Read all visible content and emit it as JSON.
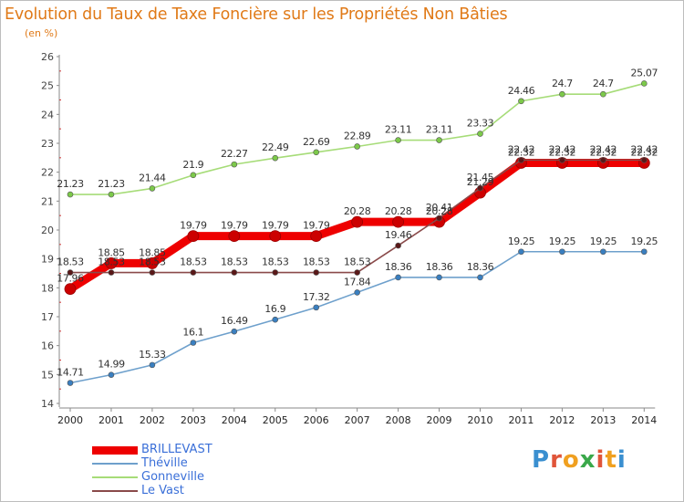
{
  "chart_data": {
    "type": "line",
    "title": "Evolution du Taux de Taxe Foncière sur les Propriétés Non Bâties",
    "ylabel": "(en %)",
    "xlabel": "",
    "ylim": [
      14,
      26
    ],
    "yticks": [
      "14",
      "15",
      "16",
      "17",
      "18",
      "19",
      "20",
      "21",
      "22",
      "23",
      "24",
      "25",
      "26"
    ],
    "categories": [
      "2000",
      "2001",
      "2002",
      "2003",
      "2004",
      "2005",
      "2006",
      "2007",
      "2008",
      "2009",
      "2010",
      "2011",
      "2012",
      "2013",
      "2014"
    ],
    "series": [
      {
        "name": "BRILLEVAST",
        "color": "#ee0000",
        "point_color": "#cc0000",
        "values": [
          17.96,
          18.85,
          18.85,
          19.79,
          19.79,
          19.79,
          19.79,
          20.28,
          20.28,
          20.28,
          21.29,
          22.32,
          22.32,
          22.32,
          22.32
        ],
        "labels": [
          "17.96",
          "18.85",
          "18.85",
          "19.79",
          "19.79",
          "19.79",
          "19.79",
          "20.28",
          "20.28",
          "20.28",
          "21.29",
          "22.32",
          "22.32",
          "22.32",
          "22.32"
        ]
      },
      {
        "name": "Théville",
        "color": "#6ea0cc",
        "point_color": "#3a7fc0",
        "values": [
          14.71,
          14.99,
          15.33,
          16.1,
          16.49,
          16.9,
          17.32,
          17.84,
          18.36,
          18.36,
          18.36,
          19.25,
          19.25,
          19.25,
          19.25
        ],
        "labels": [
          "14.71",
          "14.99",
          "15.33",
          "16.1",
          "16.49",
          "16.9",
          "17.32",
          "17.84",
          "18.36",
          "18.36",
          "18.36",
          "19.25",
          "19.25",
          "19.25",
          "19.25"
        ]
      },
      {
        "name": "Gonneville",
        "color": "#a6dc78",
        "point_color": "#7cc94a",
        "values": [
          21.23,
          21.23,
          21.44,
          21.9,
          22.27,
          22.49,
          22.69,
          22.89,
          23.11,
          23.11,
          23.33,
          24.46,
          24.7,
          24.7,
          25.07
        ],
        "labels": [
          "21.23",
          "21.23",
          "21.44",
          "21.9",
          "22.27",
          "22.49",
          "22.69",
          "22.89",
          "23.11",
          "23.11",
          "23.33",
          "24.46",
          "24.7",
          "24.7",
          "25.07"
        ]
      },
      {
        "name": "Le Vast",
        "color": "#8a4a4a",
        "point_color": "#5a1818",
        "values": [
          18.53,
          18.53,
          18.53,
          18.53,
          18.53,
          18.53,
          18.53,
          18.53,
          19.46,
          20.41,
          21.45,
          22.42,
          22.42,
          22.42,
          22.42
        ],
        "labels": [
          "18.53",
          "18.53",
          "18.53",
          "18.53",
          "18.53",
          "18.53",
          "18.53",
          "18.53",
          "19.46",
          "20.41",
          "21.45",
          "22.42",
          "22.42",
          "22.42",
          "22.42"
        ]
      }
    ],
    "legend": "bottom-left",
    "grid": false
  },
  "logo": {
    "text": "Proxiti",
    "colors": [
      "#3a8fd0",
      "#e0553a",
      "#f0a020",
      "#3aa84a",
      "#e0553a",
      "#f0a020",
      "#3a8fd0"
    ]
  }
}
